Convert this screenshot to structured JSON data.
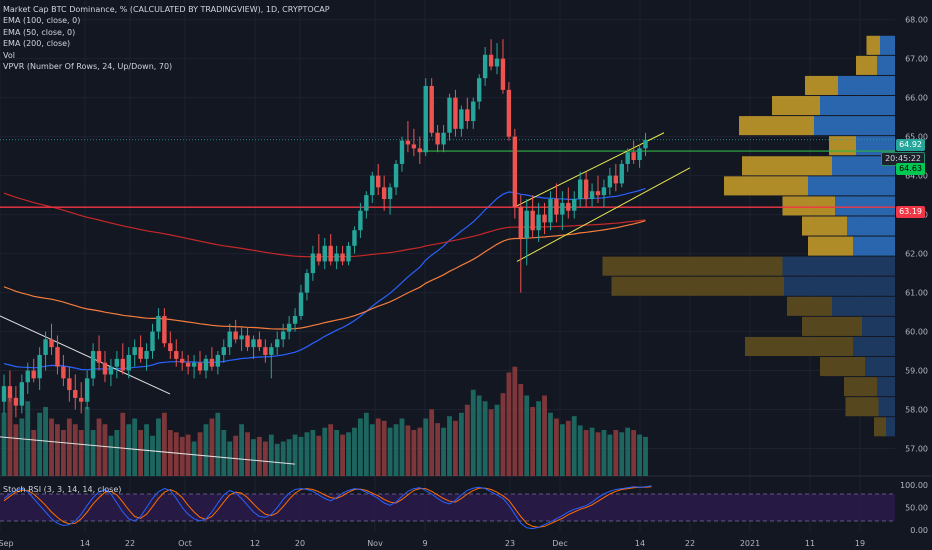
{
  "legend": {
    "title": "Market Cap BTC Dominance, % (CALCULATED BY TRADINGVIEW), 1D, CRYPTOCAP",
    "ema100": "EMA (100, close, 0)",
    "ema50": "EMA (50, close, 0)",
    "ema200": "EMA (200, close)",
    "vol": "Vol",
    "vpvr": "VPVR (Number Of Rows, 24, Up/Down, 70)"
  },
  "stoch_label": "Stoch RSI (3, 3, 14, 14, close)",
  "price_axis": [
    "68.00",
    "67.00",
    "66.00",
    "65.00",
    "64.00",
    "63.00",
    "62.00",
    "61.00",
    "60.00",
    "59.00",
    "58.00",
    "57.00"
  ],
  "stoch_axis": [
    "100.00",
    "50.00",
    "0.00"
  ],
  "time_axis": [
    "Sep",
    "14",
    "22",
    "Oct",
    "12",
    "20",
    "Nov",
    "9",
    "23",
    "Dec",
    "14",
    "22",
    "2021",
    "11",
    "19"
  ],
  "tags": {
    "last1": "64.92",
    "countdown": "20:45:22",
    "last2": "64.63",
    "level": "63.19"
  },
  "colors": {
    "up": "#26a69a",
    "down": "#ef5350",
    "ema50": "#2962ff",
    "ema100": "#f57c3c",
    "ema200": "#c62828",
    "support": "#f23645",
    "channel": "#e8e84f",
    "stoch_k": "#2962ff",
    "stoch_d": "#ff6d00"
  },
  "chart_data": {
    "type": "candlestick",
    "symbol": "Market Cap BTC Dominance, %",
    "timeframe": "1D",
    "ylim": [
      56.5,
      68.3
    ],
    "x_ticks": [
      "Sep",
      "14",
      "22",
      "Oct",
      "12",
      "20",
      "Nov",
      "9",
      "23",
      "Dec",
      "14",
      "22",
      "2021",
      "11",
      "19"
    ],
    "candles": [
      [
        58.2,
        58.9,
        57.9,
        58.6
      ],
      [
        58.6,
        59.0,
        58.2,
        58.3
      ],
      [
        58.3,
        58.6,
        57.8,
        58.1
      ],
      [
        58.1,
        58.9,
        57.9,
        58.7
      ],
      [
        58.7,
        59.2,
        58.4,
        59.0
      ],
      [
        59.0,
        59.3,
        58.7,
        58.8
      ],
      [
        58.8,
        59.6,
        58.5,
        59.4
      ],
      [
        59.4,
        60.0,
        59.0,
        59.8
      ],
      [
        59.8,
        60.2,
        59.4,
        59.6
      ],
      [
        59.6,
        59.9,
        58.9,
        59.1
      ],
      [
        59.1,
        59.4,
        58.6,
        58.8
      ],
      [
        58.8,
        59.1,
        58.2,
        58.5
      ],
      [
        58.5,
        58.9,
        58.0,
        58.3
      ],
      [
        58.3,
        58.7,
        57.9,
        58.2
      ],
      [
        58.2,
        59.0,
        58.0,
        58.8
      ],
      [
        58.8,
        59.7,
        58.6,
        59.5
      ],
      [
        59.5,
        59.9,
        59.0,
        59.2
      ],
      [
        59.2,
        59.5,
        58.7,
        58.9
      ],
      [
        58.9,
        59.3,
        58.6,
        59.1
      ],
      [
        59.1,
        59.5,
        58.8,
        59.3
      ],
      [
        59.3,
        59.7,
        58.9,
        59.0
      ],
      [
        59.0,
        59.6,
        58.8,
        59.4
      ],
      [
        59.4,
        59.8,
        59.1,
        59.6
      ],
      [
        59.6,
        59.9,
        59.2,
        59.3
      ],
      [
        59.3,
        59.7,
        59.0,
        59.5
      ],
      [
        59.5,
        60.2,
        59.3,
        60.0
      ],
      [
        60.0,
        60.6,
        59.8,
        60.4
      ],
      [
        60.4,
        60.6,
        59.6,
        59.7
      ],
      [
        59.7,
        60.0,
        59.3,
        59.5
      ],
      [
        59.5,
        59.8,
        59.1,
        59.3
      ],
      [
        59.3,
        59.5,
        59.0,
        59.2
      ],
      [
        59.2,
        59.4,
        58.9,
        59.1
      ],
      [
        59.1,
        59.4,
        58.8,
        59.2
      ],
      [
        59.2,
        59.5,
        58.9,
        59.0
      ],
      [
        59.0,
        59.4,
        58.8,
        59.3
      ],
      [
        59.3,
        59.6,
        59.0,
        59.1
      ],
      [
        59.1,
        59.5,
        58.9,
        59.4
      ],
      [
        59.4,
        59.8,
        59.2,
        59.6
      ],
      [
        59.6,
        60.2,
        59.4,
        60.0
      ],
      [
        60.0,
        60.3,
        59.7,
        59.8
      ],
      [
        59.8,
        60.1,
        59.5,
        59.9
      ],
      [
        59.9,
        60.1,
        59.5,
        59.6
      ],
      [
        59.6,
        59.9,
        59.3,
        59.8
      ],
      [
        59.8,
        60.0,
        59.5,
        59.6
      ],
      [
        59.6,
        59.8,
        59.2,
        59.4
      ],
      [
        59.4,
        59.7,
        58.8,
        59.6
      ],
      [
        59.6,
        60.0,
        59.4,
        59.8
      ],
      [
        59.8,
        60.2,
        59.6,
        60.0
      ],
      [
        60.0,
        60.4,
        59.8,
        60.2
      ],
      [
        60.2,
        60.6,
        60.0,
        60.4
      ],
      [
        60.4,
        61.2,
        60.3,
        61.0
      ],
      [
        61.0,
        61.6,
        60.8,
        61.5
      ],
      [
        61.5,
        62.2,
        61.3,
        62.0
      ],
      [
        62.0,
        62.5,
        61.7,
        61.8
      ],
      [
        61.8,
        62.4,
        61.6,
        62.2
      ],
      [
        62.2,
        62.5,
        61.7,
        61.8
      ],
      [
        61.8,
        62.2,
        61.6,
        62.0
      ],
      [
        62.0,
        62.2,
        61.7,
        61.8
      ],
      [
        61.8,
        62.3,
        61.7,
        62.2
      ],
      [
        62.2,
        62.7,
        62.0,
        62.6
      ],
      [
        62.6,
        63.3,
        62.4,
        63.1
      ],
      [
        63.1,
        63.6,
        62.9,
        63.5
      ],
      [
        63.5,
        64.1,
        63.3,
        64.0
      ],
      [
        64.0,
        64.3,
        63.5,
        63.7
      ],
      [
        63.7,
        64.0,
        63.1,
        63.4
      ],
      [
        63.4,
        63.8,
        63.0,
        63.7
      ],
      [
        63.7,
        64.4,
        63.5,
        64.3
      ],
      [
        64.3,
        65.0,
        64.1,
        64.9
      ],
      [
        64.9,
        65.4,
        64.6,
        64.8
      ],
      [
        64.8,
        65.2,
        64.5,
        64.7
      ],
      [
        64.7,
        65.0,
        64.3,
        64.6
      ],
      [
        64.6,
        66.5,
        64.5,
        66.3
      ],
      [
        66.3,
        66.5,
        65.0,
        65.1
      ],
      [
        65.1,
        65.3,
        64.6,
        64.8
      ],
      [
        64.8,
        65.3,
        64.6,
        65.1
      ],
      [
        65.1,
        66.1,
        64.9,
        66.0
      ],
      [
        66.0,
        66.2,
        65.0,
        65.2
      ],
      [
        65.2,
        65.8,
        65.0,
        65.7
      ],
      [
        65.7,
        66.0,
        65.2,
        65.4
      ],
      [
        65.4,
        66.0,
        65.2,
        65.9
      ],
      [
        65.9,
        66.6,
        65.7,
        66.5
      ],
      [
        66.5,
        67.3,
        66.3,
        67.1
      ],
      [
        67.1,
        67.5,
        66.7,
        66.8
      ],
      [
        66.8,
        67.4,
        66.6,
        67.0
      ],
      [
        67.0,
        67.5,
        66.1,
        66.2
      ],
      [
        66.2,
        66.4,
        64.9,
        65.0
      ],
      [
        65.0,
        65.2,
        62.9,
        63.2
      ],
      [
        63.2,
        63.5,
        61.0,
        62.4
      ],
      [
        62.4,
        63.4,
        61.7,
        63.1
      ],
      [
        63.1,
        63.5,
        62.4,
        62.6
      ],
      [
        62.6,
        63.3,
        62.3,
        63.0
      ],
      [
        63.0,
        63.3,
        62.5,
        62.8
      ],
      [
        62.8,
        63.6,
        62.6,
        63.4
      ],
      [
        63.4,
        63.8,
        62.8,
        63.0
      ],
      [
        63.0,
        63.6,
        62.6,
        63.3
      ],
      [
        63.3,
        63.7,
        62.9,
        63.1
      ],
      [
        63.1,
        63.6,
        62.9,
        63.4
      ],
      [
        63.4,
        64.1,
        63.2,
        63.9
      ],
      [
        63.9,
        64.1,
        63.2,
        63.4
      ],
      [
        63.4,
        63.8,
        63.2,
        63.6
      ],
      [
        63.6,
        64.0,
        63.3,
        63.5
      ],
      [
        63.5,
        63.9,
        63.2,
        63.7
      ],
      [
        63.7,
        64.2,
        63.5,
        64.0
      ],
      [
        64.0,
        64.3,
        63.6,
        63.8
      ],
      [
        63.8,
        64.4,
        63.7,
        64.3
      ],
      [
        64.3,
        64.7,
        64.1,
        64.6
      ],
      [
        64.6,
        64.9,
        64.3,
        64.4
      ],
      [
        64.4,
        64.8,
        64.2,
        64.7
      ],
      [
        64.7,
        65.1,
        64.5,
        64.92
      ]
    ],
    "volume_rel": [
      0.55,
      0.7,
      0.45,
      0.5,
      0.65,
      0.4,
      0.55,
      0.6,
      0.5,
      0.45,
      0.4,
      0.5,
      0.45,
      0.4,
      0.6,
      0.4,
      0.5,
      0.45,
      0.35,
      0.4,
      0.55,
      0.45,
      0.5,
      0.4,
      0.45,
      0.35,
      0.5,
      0.55,
      0.4,
      0.38,
      0.34,
      0.36,
      0.3,
      0.38,
      0.45,
      0.5,
      0.55,
      0.4,
      0.3,
      0.35,
      0.45,
      0.38,
      0.32,
      0.34,
      0.3,
      0.36,
      0.28,
      0.3,
      0.32,
      0.36,
      0.34,
      0.38,
      0.4,
      0.35,
      0.42,
      0.45,
      0.4,
      0.36,
      0.38,
      0.42,
      0.5,
      0.55,
      0.45,
      0.5,
      0.48,
      0.42,
      0.45,
      0.5,
      0.44,
      0.4,
      0.42,
      0.5,
      0.58,
      0.46,
      0.42,
      0.52,
      0.48,
      0.55,
      0.62,
      0.75,
      0.7,
      0.65,
      0.58,
      0.62,
      0.72,
      0.9,
      0.95,
      0.8,
      0.7,
      0.6,
      0.65,
      0.7,
      0.55,
      0.5,
      0.45,
      0.48,
      0.52,
      0.44,
      0.4,
      0.42,
      0.38,
      0.4,
      0.36,
      0.4,
      0.38,
      0.42,
      0.4,
      0.36,
      0.34,
      0.36
    ],
    "levels": {
      "horizontal_red": 63.19,
      "horizontal_green": 64.63,
      "last": 64.92
    },
    "vpvr_rows": [
      {
        "up": 0.9,
        "down": 1.0
      },
      {
        "up": 1.4,
        "down": 1.2
      },
      {
        "up": 2.2,
        "down": 3.8
      },
      {
        "up": 3.2,
        "down": 5.0
      },
      {
        "up": 5.0,
        "down": 5.4
      },
      {
        "up": 1.8,
        "down": 2.6
      },
      {
        "up": 6.0,
        "down": 4.2
      },
      {
        "up": 5.6,
        "down": 5.8
      },
      {
        "up": 3.5,
        "down": 4.0
      },
      {
        "up": 3.0,
        "down": 3.2
      },
      {
        "up": 3.0,
        "down": 2.8
      },
      {
        "up": 12.0,
        "down": 7.5
      },
      {
        "up": 11.5,
        "down": 7.4
      },
      {
        "up": 3.0,
        "down": 4.2
      },
      {
        "up": 4.0,
        "down": 2.2
      },
      {
        "up": 7.2,
        "down": 2.8
      },
      {
        "up": 3.0,
        "down": 2.0
      },
      {
        "up": 2.2,
        "down": 1.2
      },
      {
        "up": 2.2,
        "down": 1.1
      },
      {
        "up": 0.8,
        "down": 0.6
      }
    ],
    "stoch_ylim": [
      0,
      100
    ],
    "stoch_k": [
      70,
      80,
      88,
      92,
      85,
      70,
      55,
      40,
      25,
      15,
      10,
      12,
      20,
      35,
      55,
      72,
      85,
      90,
      80,
      60,
      40,
      25,
      20,
      30,
      50,
      70,
      85,
      92,
      88,
      70,
      50,
      35,
      25,
      20,
      25,
      40,
      60,
      78,
      88,
      82,
      70,
      55,
      40,
      30,
      28,
      35,
      50,
      68,
      82,
      90,
      92,
      90,
      86,
      78,
      70,
      65,
      72,
      82,
      88,
      92,
      90,
      84,
      78,
      70,
      60,
      55,
      62,
      75,
      86,
      92,
      94,
      88,
      80,
      70,
      62,
      58,
      66,
      78,
      88,
      93,
      95,
      92,
      85,
      78,
      70,
      55,
      35,
      15,
      5,
      3,
      6,
      12,
      18,
      25,
      32,
      40,
      46,
      50,
      54,
      62,
      72,
      80,
      86,
      90,
      92,
      94,
      96,
      95,
      96,
      98
    ],
    "stoch_d": [
      65,
      75,
      84,
      88,
      88,
      80,
      68,
      55,
      40,
      28,
      18,
      14,
      15,
      25,
      40,
      58,
      72,
      84,
      86,
      78,
      62,
      45,
      30,
      26,
      35,
      52,
      70,
      84,
      90,
      84,
      72,
      55,
      40,
      28,
      24,
      30,
      45,
      62,
      78,
      84,
      82,
      72,
      58,
      45,
      35,
      32,
      38,
      52,
      68,
      82,
      90,
      92,
      90,
      85,
      78,
      72,
      70,
      76,
      84,
      90,
      91,
      88,
      82,
      76,
      68,
      62,
      60,
      68,
      78,
      88,
      92,
      92,
      86,
      78,
      70,
      64,
      62,
      70,
      80,
      88,
      93,
      93,
      90,
      84,
      76,
      66,
      48,
      30,
      15,
      8,
      6,
      8,
      14,
      20,
      26,
      34,
      40,
      46,
      50,
      56,
      64,
      72,
      80,
      86,
      90,
      92,
      94,
      95,
      95,
      96
    ]
  }
}
